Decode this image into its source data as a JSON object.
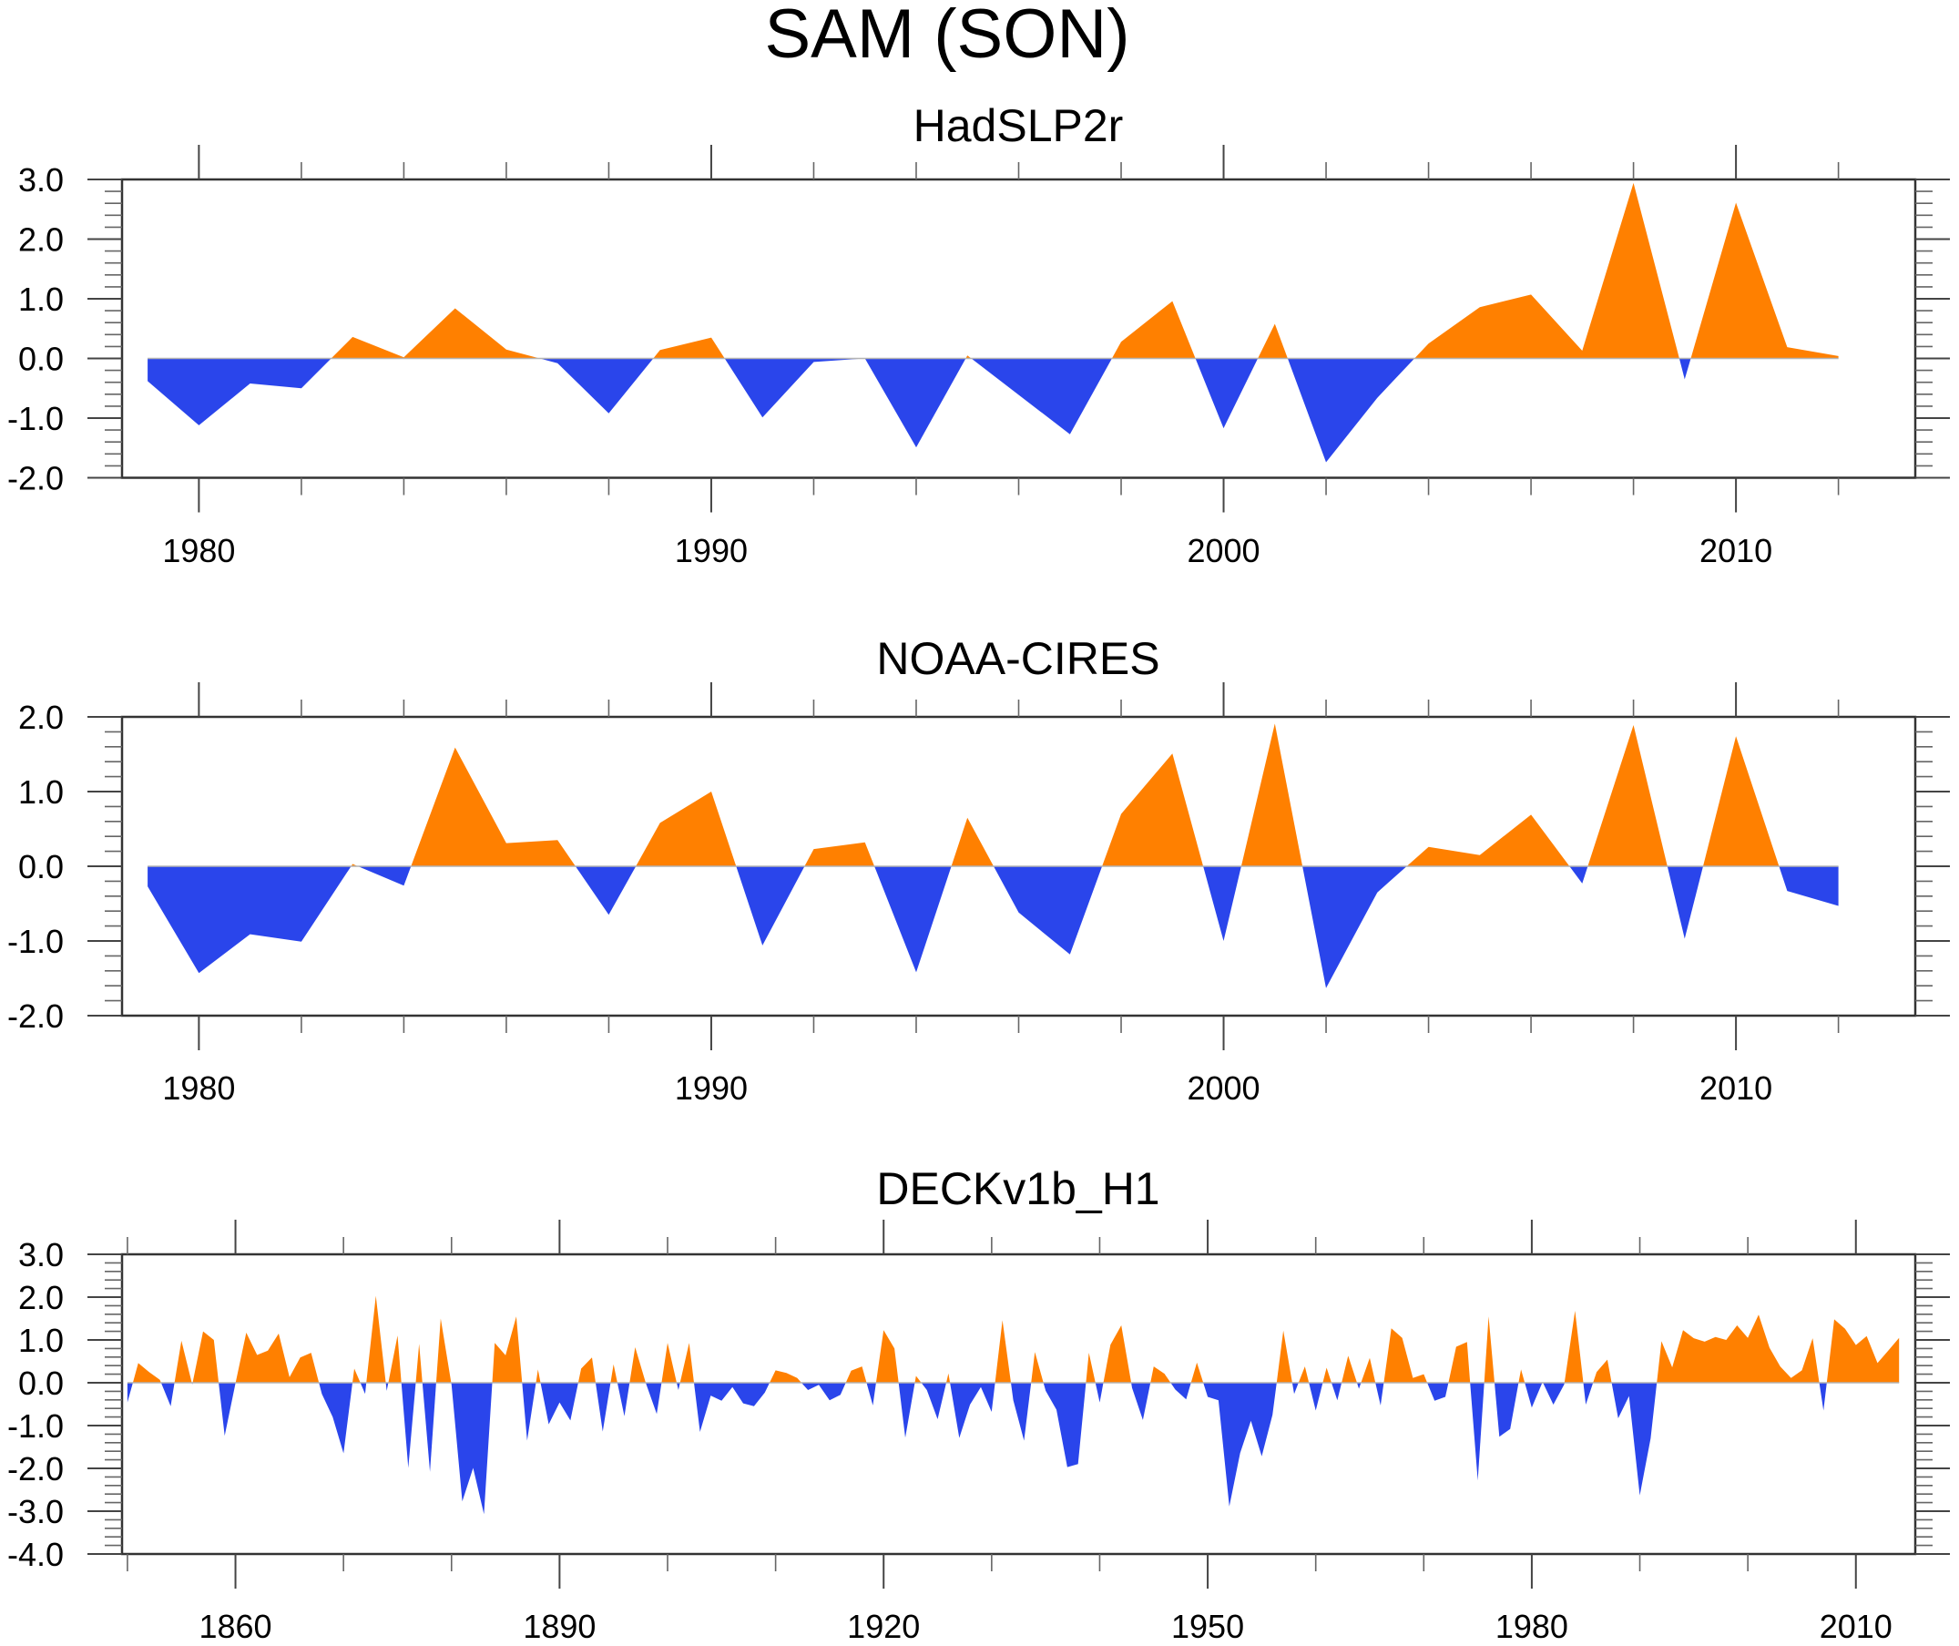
{
  "figure": {
    "title": "SAM (SON)"
  },
  "colors": {
    "positive": "#FF8000",
    "negative": "#2A45EB",
    "zero_line": "#B3B3B3",
    "frame": "#333333"
  },
  "chart_data": [
    {
      "type": "area",
      "title": "HadSLP2r",
      "xlabel": "",
      "ylabel": "",
      "xlim": [
        1978.5,
        2013.5
      ],
      "ylim": [
        -2.0,
        3.0
      ],
      "yticks": [
        "3.0",
        "2.0",
        "1.0",
        "0.0",
        "-1.0",
        "-2.0"
      ],
      "ytick_values": [
        3,
        2,
        1,
        0,
        -1,
        -2
      ],
      "xticks": [
        "1980",
        "1990",
        "2000",
        "2010"
      ],
      "xtick_values": [
        1980,
        1990,
        2000,
        2010
      ],
      "x_minor_step": 2,
      "y_minor_step": 0.2,
      "grid": false,
      "fill_above_zero": "orange",
      "fill_below_zero": "blue",
      "x": [
        1979,
        1980,
        1981,
        1982,
        1983,
        1984,
        1985,
        1986,
        1987,
        1988,
        1989,
        1990,
        1991,
        1992,
        1993,
        1994,
        1995,
        1996,
        1997,
        1998,
        1999,
        2000,
        2001,
        2002,
        2003,
        2004,
        2005,
        2006,
        2007,
        2008,
        2009,
        2010,
        2011,
        2012
      ],
      "values": [
        -0.38,
        -1.12,
        -0.42,
        -0.5,
        0.36,
        0.02,
        0.84,
        0.15,
        -0.08,
        -0.92,
        0.14,
        0.35,
        -0.99,
        -0.06,
        0.0,
        -1.49,
        0.05,
        -0.61,
        -1.27,
        0.28,
        0.96,
        -1.17,
        0.58,
        -1.74,
        -0.66,
        0.25,
        0.86,
        1.07,
        0.13,
        2.94,
        -0.35,
        2.61,
        0.19,
        0.04
      ]
    },
    {
      "type": "area",
      "title": "NOAA-CIRES",
      "xlabel": "",
      "ylabel": "",
      "xlim": [
        1978.5,
        2013.5
      ],
      "ylim": [
        -2.0,
        2.0
      ],
      "yticks": [
        "2.0",
        "1.0",
        "0.0",
        "-1.0",
        "-2.0"
      ],
      "ytick_values": [
        2,
        1,
        0,
        -1,
        -2
      ],
      "xticks": [
        "1980",
        "1990",
        "2000",
        "2010"
      ],
      "xtick_values": [
        1980,
        1990,
        2000,
        2010
      ],
      "x_minor_step": 2,
      "y_minor_step": 0.2,
      "grid": false,
      "fill_above_zero": "orange",
      "fill_below_zero": "blue",
      "x": [
        1979,
        1980,
        1981,
        1982,
        1983,
        1984,
        1985,
        1986,
        1987,
        1988,
        1989,
        1990,
        1991,
        1992,
        1993,
        1994,
        1995,
        1996,
        1997,
        1998,
        1999,
        2000,
        2001,
        2002,
        2003,
        2004,
        2005,
        2006,
        2007,
        2008,
        2009,
        2010,
        2011,
        2012
      ],
      "values": [
        -0.27,
        -1.43,
        -0.91,
        -1.01,
        0.03,
        -0.26,
        1.59,
        0.31,
        0.35,
        -0.65,
        0.58,
        1.0,
        -1.06,
        0.23,
        0.32,
        -1.42,
        0.65,
        -0.62,
        -1.18,
        0.7,
        1.51,
        -1.0,
        1.91,
        -1.63,
        -0.35,
        0.26,
        0.15,
        0.69,
        -0.23,
        1.89,
        -0.97,
        1.74,
        -0.33,
        -0.53
      ]
    },
    {
      "type": "area",
      "title": "DECKv1b_H1",
      "xlabel": "",
      "ylabel": "",
      "xlim": [
        1849.5,
        2015.5
      ],
      "ylim": [
        -4.0,
        3.0
      ],
      "yticks": [
        "3.0",
        "2.0",
        "1.0",
        "0.0",
        "-1.0",
        "-2.0",
        "-3.0",
        "-4.0"
      ],
      "ytick_values": [
        3,
        2,
        1,
        0,
        -1,
        -2,
        -3,
        -4
      ],
      "xticks": [
        "1860",
        "1890",
        "1920",
        "1950",
        "1980",
        "2010"
      ],
      "xtick_values": [
        1860,
        1890,
        1920,
        1950,
        1980,
        2010
      ],
      "x_minor_step": 10,
      "y_minor_step": 0.2,
      "grid": false,
      "fill_above_zero": "orange",
      "fill_below_zero": "blue",
      "x_start": 1850,
      "x_end": 2014,
      "values": [
        -0.46,
        0.46,
        0.25,
        0.07,
        -0.55,
        0.98,
        -0.04,
        1.2,
        1.0,
        -1.24,
        -0.02,
        1.17,
        0.65,
        0.75,
        1.15,
        0.13,
        0.59,
        0.7,
        -0.26,
        -0.8,
        -1.65,
        0.33,
        -0.26,
        2.03,
        -0.19,
        1.1,
        -1.99,
        0.91,
        -2.08,
        1.5,
        -0.05,
        -2.77,
        -1.99,
        -3.07,
        0.93,
        0.64,
        1.55,
        -1.35,
        0.31,
        -0.97,
        -0.46,
        -0.88,
        0.33,
        0.59,
        -1.14,
        0.43,
        -0.78,
        0.83,
        -0.02,
        -0.73,
        0.93,
        -0.17,
        0.93,
        -1.15,
        -0.3,
        -0.42,
        -0.1,
        -0.48,
        -0.55,
        -0.23,
        0.29,
        0.23,
        0.11,
        -0.17,
        -0.05,
        -0.41,
        -0.28,
        0.28,
        0.38,
        -0.53,
        1.23,
        0.8,
        -1.28,
        0.16,
        -0.17,
        -0.85,
        0.22,
        -1.29,
        -0.51,
        -0.1,
        -0.68,
        1.46,
        -0.41,
        -1.35,
        0.72,
        -0.19,
        -0.63,
        -1.97,
        -1.9,
        0.7,
        -0.46,
        0.89,
        1.34,
        -0.12,
        -0.87,
        0.38,
        0.21,
        -0.16,
        -0.39,
        0.47,
        -0.33,
        -0.41,
        -2.89,
        -1.64,
        -0.89,
        -1.72,
        -0.75,
        1.22,
        -0.26,
        0.38,
        -0.65,
        0.35,
        -0.41,
        0.63,
        -0.14,
        0.58,
        -0.53,
        1.27,
        1.05,
        0.11,
        0.2,
        -0.42,
        -0.33,
        0.84,
        0.95,
        -2.28,
        1.55,
        -1.26,
        -1.08,
        0.31,
        -0.58,
        0.02,
        -0.51,
        -0.04,
        1.68,
        -0.51,
        0.25,
        0.54,
        -0.83,
        -0.31,
        -2.63,
        -1.3,
        0.97,
        0.36,
        1.23,
        1.04,
        0.96,
        1.07,
        1.0,
        1.34,
        1.05,
        1.59,
        0.82,
        0.38,
        0.11,
        0.29,
        1.04,
        -0.65,
        1.48,
        1.26,
        0.88,
        1.09,
        0.46,
        0.75,
        1.05
      ]
    }
  ]
}
